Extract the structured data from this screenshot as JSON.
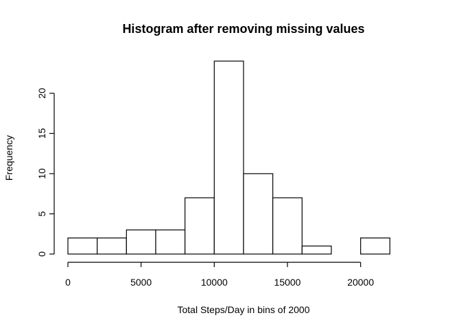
{
  "chart_data": {
    "type": "bar",
    "title": "Histogram after removing missing values",
    "xlabel": "Total Steps/Day in bins of 2000",
    "ylabel": "Frequency",
    "bin_width": 2000,
    "bins": [
      {
        "start": 0,
        "end": 2000,
        "count": 2
      },
      {
        "start": 2000,
        "end": 4000,
        "count": 2
      },
      {
        "start": 4000,
        "end": 6000,
        "count": 3
      },
      {
        "start": 6000,
        "end": 8000,
        "count": 3
      },
      {
        "start": 8000,
        "end": 10000,
        "count": 7
      },
      {
        "start": 10000,
        "end": 12000,
        "count": 24
      },
      {
        "start": 12000,
        "end": 14000,
        "count": 10
      },
      {
        "start": 14000,
        "end": 16000,
        "count": 7
      },
      {
        "start": 16000,
        "end": 18000,
        "count": 1
      },
      {
        "start": 18000,
        "end": 20000,
        "count": 0
      },
      {
        "start": 20000,
        "end": 22000,
        "count": 2
      },
      {
        "start": 22000,
        "end": 24000,
        "count": 0
      }
    ],
    "xlim": [
      0,
      24000
    ],
    "ylim": [
      0,
      25
    ],
    "x_ticks": [
      0,
      5000,
      10000,
      15000,
      20000
    ],
    "y_ticks": [
      0,
      5,
      10,
      15,
      20
    ],
    "grid": false,
    "legend": "none"
  }
}
